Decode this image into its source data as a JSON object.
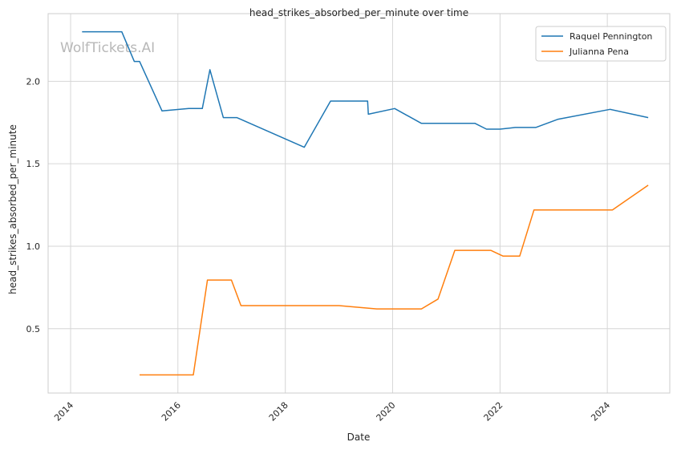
{
  "chart_data": {
    "type": "line",
    "title": "head_strikes_absorbed_per_minute over time",
    "xlabel": "Date",
    "ylabel": "head_strikes_absorbed_per_minute",
    "watermark": "WolfTickets.AI",
    "xlim": [
      "2013-08-01",
      "2025-03-01"
    ],
    "ylim": [
      0.11,
      2.41
    ],
    "grid": true,
    "legend_position": "top-right",
    "x_ticks": [
      "2014",
      "2016",
      "2018",
      "2020",
      "2022",
      "2024"
    ],
    "y_ticks": [
      "0.5",
      "1.0",
      "1.5",
      "2.0"
    ],
    "series": [
      {
        "name": "Raquel Pennington",
        "color": "#1f77b4",
        "points": [
          [
            "2014-03-20",
            2.3
          ],
          [
            "2014-12-15",
            2.3
          ],
          [
            "2015-03-10",
            2.12
          ],
          [
            "2015-04-15",
            2.12
          ],
          [
            "2015-09-15",
            1.82
          ],
          [
            "2016-03-15",
            1.835
          ],
          [
            "2016-06-15",
            1.835
          ],
          [
            "2016-08-06",
            2.07
          ],
          [
            "2016-11-05",
            1.78
          ],
          [
            "2017-02-05",
            1.78
          ],
          [
            "2018-05-10",
            1.6
          ],
          [
            "2018-11-05",
            1.88
          ],
          [
            "2019-07-15",
            1.88
          ],
          [
            "2019-07-20",
            1.8
          ],
          [
            "2020-01-15",
            1.835
          ],
          [
            "2020-07-15",
            1.745
          ],
          [
            "2021-07-15",
            1.745
          ],
          [
            "2021-10-01",
            1.71
          ],
          [
            "2022-01-01",
            1.71
          ],
          [
            "2022-04-15",
            1.72
          ],
          [
            "2022-09-01",
            1.72
          ],
          [
            "2023-02-01",
            1.77
          ],
          [
            "2024-01-20",
            1.83
          ],
          [
            "2024-10-05",
            1.78
          ]
        ]
      },
      {
        "name": "Julianna Pena",
        "color": "#ff7f0e",
        "points": [
          [
            "2015-04-15",
            0.22
          ],
          [
            "2016-04-15",
            0.22
          ],
          [
            "2016-07-20",
            0.795
          ],
          [
            "2016-12-30",
            0.795
          ],
          [
            "2017-03-05",
            0.64
          ],
          [
            "2019-01-01",
            0.64
          ],
          [
            "2019-09-15",
            0.62
          ],
          [
            "2020-07-15",
            0.62
          ],
          [
            "2020-11-05",
            0.68
          ],
          [
            "2021-02-27",
            0.975
          ],
          [
            "2021-10-30",
            0.975
          ],
          [
            "2022-01-22",
            0.94
          ],
          [
            "2022-05-15",
            0.94
          ],
          [
            "2022-08-20",
            1.22
          ],
          [
            "2024-02-05",
            1.22
          ],
          [
            "2024-10-05",
            1.37
          ]
        ]
      }
    ]
  }
}
